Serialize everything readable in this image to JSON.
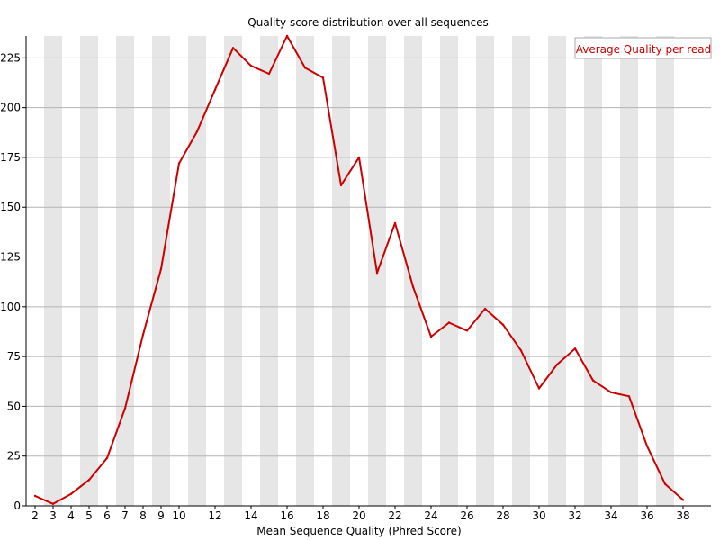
{
  "chart_data": {
    "type": "line",
    "title": "Quality score distribution over all sequences",
    "xlabel": "Mean Sequence Quality (Phred Score)",
    "ylabel": "",
    "xlim": [
      1.5,
      39
    ],
    "ylim": [
      0,
      236
    ],
    "x_ticks": [
      2,
      3,
      4,
      5,
      6,
      7,
      8,
      9,
      10,
      12,
      14,
      16,
      18,
      20,
      22,
      24,
      26,
      28,
      30,
      32,
      34,
      36,
      38
    ],
    "y_ticks": [
      0,
      25,
      50,
      75,
      100,
      125,
      150,
      175,
      200,
      225
    ],
    "grid": true,
    "legend_position": "top-right",
    "series": [
      {
        "name": "Average Quality per read",
        "color": "#cc0000",
        "x": [
          2,
          3,
          4,
          5,
          6,
          7,
          8,
          9,
          10,
          11,
          12,
          13,
          14,
          15,
          16,
          17,
          18,
          19,
          20,
          21,
          22,
          23,
          24,
          25,
          26,
          27,
          28,
          29,
          30,
          31,
          32,
          33,
          34,
          35,
          36,
          37,
          38
        ],
        "values": [
          5,
          1,
          6,
          13,
          24,
          49,
          86,
          119,
          172,
          188,
          209,
          230,
          221,
          217,
          236,
          220,
          215,
          161,
          175,
          117,
          142,
          110,
          85,
          92,
          88,
          99,
          91,
          78,
          59,
          71,
          79,
          63,
          57,
          55,
          30,
          11,
          3
        ]
      }
    ]
  }
}
